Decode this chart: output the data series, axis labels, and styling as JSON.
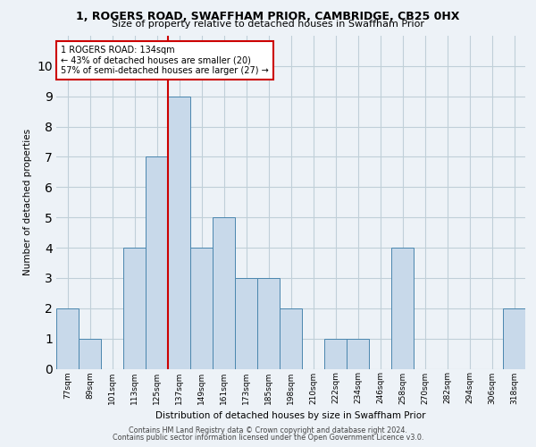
{
  "title_line1": "1, ROGERS ROAD, SWAFFHAM PRIOR, CAMBRIDGE, CB25 0HX",
  "title_line2": "Size of property relative to detached houses in Swaffham Prior",
  "xlabel": "Distribution of detached houses by size in Swaffham Prior",
  "ylabel": "Number of detached properties",
  "bin_labels": [
    "77sqm",
    "89sqm",
    "101sqm",
    "113sqm",
    "125sqm",
    "137sqm",
    "149sqm",
    "161sqm",
    "173sqm",
    "185sqm",
    "198sqm",
    "210sqm",
    "222sqm",
    "234sqm",
    "246sqm",
    "258sqm",
    "270sqm",
    "282sqm",
    "294sqm",
    "306sqm",
    "318sqm"
  ],
  "bar_heights": [
    2,
    1,
    0,
    4,
    7,
    9,
    4,
    5,
    3,
    3,
    2,
    0,
    1,
    1,
    0,
    4,
    0,
    0,
    0,
    0,
    2
  ],
  "bar_color": "#c8d9ea",
  "bar_edge_color": "#4a86ae",
  "annotation_text": "1 ROGERS ROAD: 134sqm\n← 43% of detached houses are smaller (20)\n57% of semi-detached houses are larger (27) →",
  "annotation_box_color": "#ffffff",
  "annotation_box_edge": "#cc0000",
  "reference_line_color": "#cc0000",
  "ylim": [
    0,
    11
  ],
  "yticks": [
    0,
    1,
    2,
    3,
    4,
    5,
    6,
    7,
    8,
    9,
    10,
    11
  ],
  "footer_line1": "Contains HM Land Registry data © Crown copyright and database right 2024.",
  "footer_line2": "Contains public sector information licensed under the Open Government Licence v3.0.",
  "bg_color": "#edf2f7",
  "plot_bg_color": "#edf2f7",
  "grid_color": "#c0cfd8"
}
